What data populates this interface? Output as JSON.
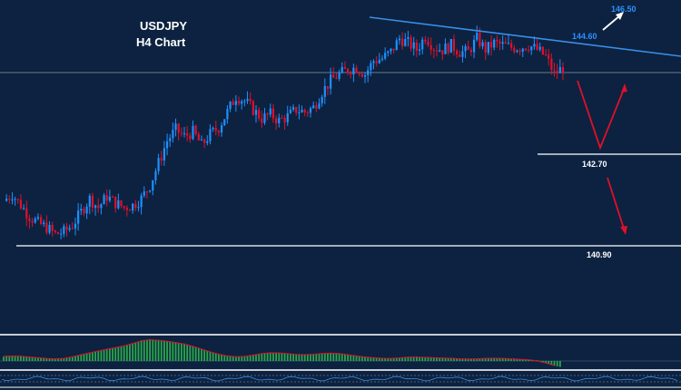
{
  "title": {
    "symbol": "USDJPY",
    "timeframe": "H4 Chart"
  },
  "colors": {
    "background": "#0c2240",
    "bull": "#1e90ff",
    "bear": "#e0102a",
    "trendline": "#3a8ee6",
    "support": "#d8dde4",
    "projection_down": "#e0102a",
    "projection_up": "#ffffff",
    "level_label_blue": "#2e8fff",
    "level_label_white": "#ffffff",
    "histogram": "#2aa84a",
    "signal": "#e0102a",
    "oscillator": "#3a8ee6"
  },
  "chart_data": {
    "type": "candlestick",
    "title": "USDJPY H4 Chart",
    "annotations": [
      {
        "label": "146.50",
        "kind": "target-up",
        "color": "blue"
      },
      {
        "label": "144.60",
        "kind": "descending-trendline-level",
        "color": "blue"
      },
      {
        "label": "142.70",
        "kind": "support",
        "color": "white"
      },
      {
        "label": "140.90",
        "kind": "support",
        "color": "white"
      }
    ],
    "closes": [
      141.45,
      141.6,
      141.35,
      141.1,
      140.95,
      140.85,
      140.7,
      140.75,
      140.9,
      141.2,
      141.5,
      141.3,
      141.55,
      141.4,
      141.3,
      141.35,
      141.5,
      141.8,
      142.3,
      142.8,
      143.05,
      142.9,
      143.0,
      142.7,
      142.95,
      143.1,
      143.45,
      143.8,
      143.7,
      143.5,
      143.3,
      143.4,
      143.25,
      143.35,
      143.5,
      143.45,
      143.55,
      143.9,
      144.15,
      144.3,
      144.4,
      144.45,
      144.3,
      144.6,
      144.65,
      144.8,
      145.1,
      145.0,
      144.85,
      145.15,
      144.9,
      144.85,
      144.95,
      144.8,
      144.8,
      145.1,
      144.85,
      145.0,
      144.95,
      144.9,
      144.9,
      144.95,
      144.85,
      144.7,
      144.3,
      144.45
    ],
    "histogram": [
      0.2,
      0.25,
      0.22,
      0.18,
      0.15,
      0.12,
      0.08,
      0.1,
      0.18,
      0.3,
      0.38,
      0.45,
      0.55,
      0.62,
      0.68,
      0.8,
      0.95,
      1.0,
      0.96,
      0.9,
      0.85,
      0.8,
      0.68,
      0.55,
      0.42,
      0.3,
      0.22,
      0.18,
      0.2,
      0.26,
      0.35,
      0.4,
      0.38,
      0.33,
      0.3,
      0.28,
      0.3,
      0.35,
      0.38,
      0.34,
      0.3,
      0.22,
      0.18,
      0.15,
      0.12,
      0.1,
      0.14,
      0.18,
      0.2,
      0.16,
      0.14,
      0.15,
      0.12,
      0.1,
      0.08,
      0.1,
      0.12,
      0.14,
      0.12,
      0.1,
      0.08,
      0.06,
      0.04,
      -0.1,
      -0.22,
      -0.3
    ]
  }
}
